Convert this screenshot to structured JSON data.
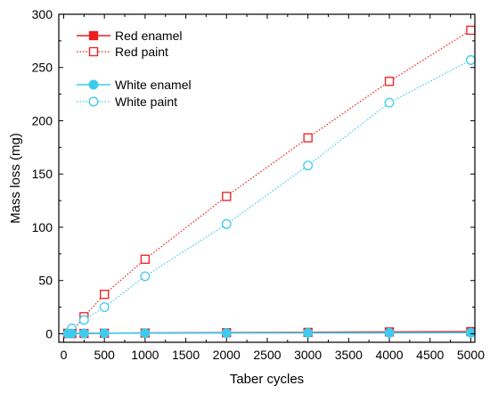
{
  "chart_data": {
    "type": "line",
    "xlabel": "Taber cycles",
    "ylabel": "Mass loss (mg)",
    "xlim": [
      -60,
      5050
    ],
    "ylim": [
      -8,
      300
    ],
    "xticks": [
      0,
      500,
      1000,
      1500,
      2000,
      2500,
      3000,
      3500,
      4000,
      4500,
      5000
    ],
    "yticks": [
      0,
      50,
      100,
      150,
      200,
      250,
      300
    ],
    "grid": false,
    "legend_position": "top-left",
    "series": [
      {
        "name": "Red enamel",
        "color": "#ee1c1c",
        "marker": "square-filled",
        "line": "solid",
        "x": [
          50,
          100,
          250,
          500,
          1000,
          2000,
          3000,
          4000,
          5000
        ],
        "y": [
          0.1,
          0.2,
          0.3,
          0.5,
          0.7,
          1.0,
          1.3,
          1.7,
          2.0
        ]
      },
      {
        "name": "Red paint",
        "color": "#ee1c1c",
        "marker": "square-open",
        "line": "dotted",
        "x": [
          50,
          100,
          250,
          500,
          1000,
          2000,
          3000,
          4000,
          5000
        ],
        "y": [
          0.5,
          1.5,
          16,
          37,
          70,
          129,
          184,
          237,
          285
        ]
      },
      {
        "name": "White enamel",
        "color": "#3ccbee",
        "marker": "circle-filled",
        "line": "solid",
        "x": [
          50,
          100,
          250,
          500,
          1000,
          2000,
          3000,
          4000,
          5000
        ],
        "y": [
          0.2,
          0.3,
          0.4,
          0.5,
          0.6,
          0.7,
          0.8,
          0.9,
          1.0
        ]
      },
      {
        "name": "White paint",
        "color": "#3ccbee",
        "marker": "circle-open",
        "line": "dotted",
        "x": [
          50,
          100,
          250,
          500,
          1000,
          2000,
          3000,
          4000,
          5000
        ],
        "y": [
          0.5,
          5,
          13,
          25,
          54,
          103,
          158,
          217,
          257
        ]
      }
    ]
  }
}
